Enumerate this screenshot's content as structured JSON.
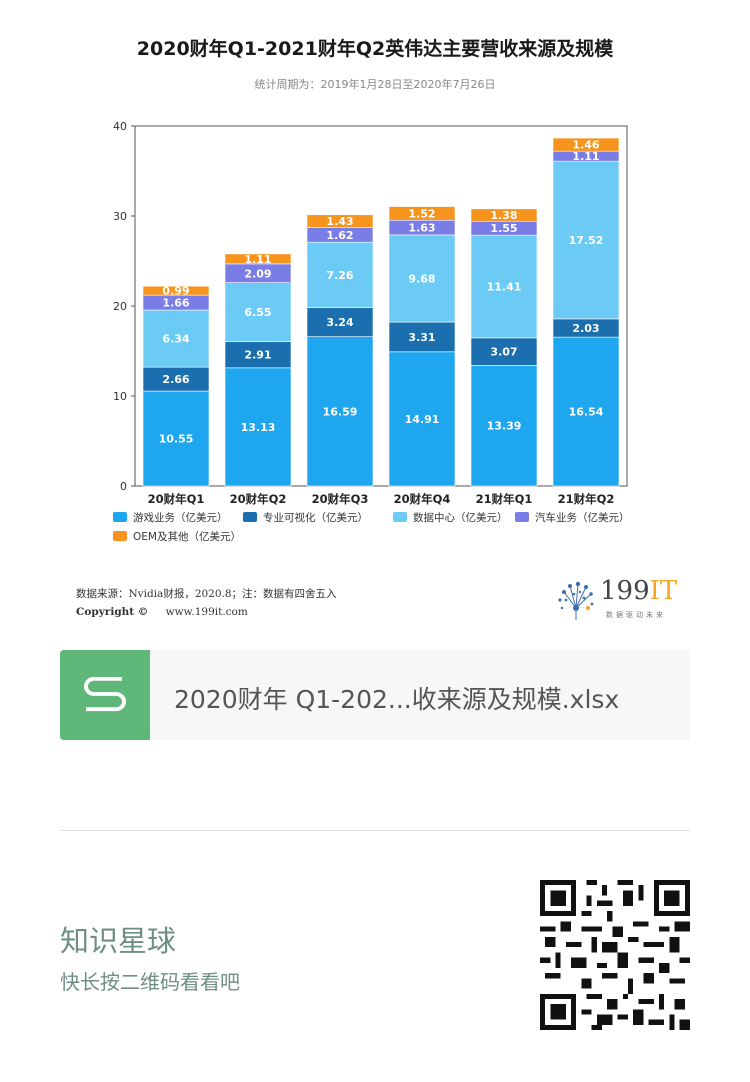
{
  "title": "2020财年Q1-2021财年Q2英伟达主要营收来源及规模",
  "subtitle": "统计周期为：2019年1月28日至2020年7月26日",
  "chart_data": {
    "type": "bar",
    "stacked": true,
    "categories": [
      "20财年Q1",
      "20财年Q2",
      "20财年Q3",
      "20财年Q4",
      "21财年Q1",
      "21财年Q2"
    ],
    "ylim": [
      0,
      40
    ],
    "yticks": [
      "0",
      "10",
      "20",
      "30",
      "40"
    ],
    "series": [
      {
        "name": "游戏业务（亿美元）",
        "color": "#1ea6ef",
        "values": [
          10.55,
          13.13,
          16.59,
          14.91,
          13.39,
          16.54
        ],
        "labels": [
          "10.55",
          "13.13",
          "16.59",
          "14.91",
          "13.39",
          "16.54"
        ]
      },
      {
        "name": "专业可视化（亿美元）",
        "color": "#1b6fae",
        "values": [
          2.66,
          2.91,
          3.24,
          3.31,
          3.07,
          2.03
        ],
        "labels": [
          "2.66",
          "2.91",
          "3.24",
          "3.31",
          "3.07",
          "2.03"
        ]
      },
      {
        "name": "数据中心（亿美元）",
        "color": "#6ccbf5",
        "values": [
          6.34,
          6.55,
          7.26,
          9.68,
          11.41,
          17.52
        ],
        "labels": [
          "6.34",
          "6.55",
          "7.26",
          "9.68",
          "11.41",
          "17.52"
        ]
      },
      {
        "name": "汽车业务（亿美元）",
        "color": "#7b7de6",
        "values": [
          1.66,
          2.09,
          1.62,
          1.63,
          1.55,
          1.11
        ],
        "labels": [
          "1.66",
          "2.09",
          "1.62",
          "1.63",
          "1.55",
          "1.11"
        ]
      },
      {
        "name": "OEM及其他（亿美元）",
        "color": "#f7941d",
        "values": [
          0.99,
          1.11,
          1.43,
          1.52,
          1.38,
          1.46
        ],
        "labels": [
          "0.99",
          "1.11",
          "1.43",
          "1.52",
          "1.38",
          "1.46"
        ]
      }
    ]
  },
  "footer": {
    "source": "数据来源：Nvidia财报，2020.8；注：数据有四舍五入",
    "copyright_label": "Copyright ©",
    "copyright_url": "www.199it.com"
  },
  "logo": {
    "text_num": "199",
    "text_it": "IT",
    "tagline": "数据驱动未来"
  },
  "file": {
    "name": "2020财年 Q1-202...收来源及规模.xlsx"
  },
  "planet": {
    "title": "知识星球",
    "subtitle": "快长按二维码看看吧"
  }
}
